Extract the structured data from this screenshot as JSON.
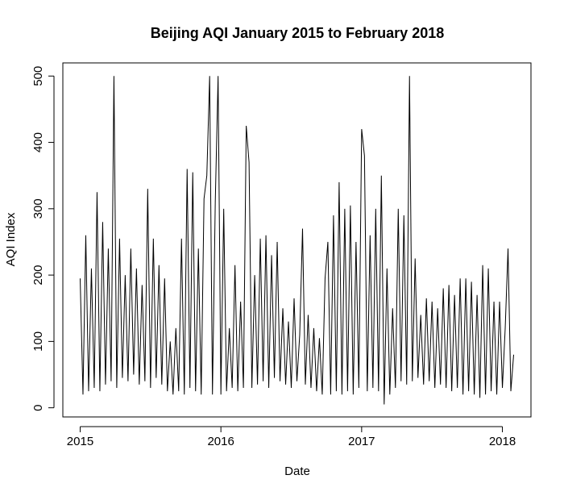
{
  "chart_data": {
    "type": "line",
    "title": "Beijing AQI January 2015 to February 2018",
    "x_label": "Date",
    "y_label": "AQI Index",
    "color": "#000000",
    "x": [
      2015.0,
      2015.02,
      2015.04,
      2015.06,
      2015.08,
      2015.1,
      2015.12,
      2015.14,
      2015.16,
      2015.18,
      2015.2,
      2015.22,
      2015.24,
      2015.26,
      2015.28,
      2015.3,
      2015.32,
      2015.34,
      2015.36,
      2015.38,
      2015.4,
      2015.42,
      2015.44,
      2015.46,
      2015.48,
      2015.5,
      2015.52,
      2015.54,
      2015.56,
      2015.58,
      2015.6,
      2015.62,
      2015.64,
      2015.66,
      2015.68,
      2015.7,
      2015.72,
      2015.74,
      2015.76,
      2015.78,
      2015.8,
      2015.82,
      2015.84,
      2015.86,
      2015.88,
      2015.9,
      2015.92,
      2015.94,
      2015.96,
      2015.98,
      2016.0,
      2016.02,
      2016.04,
      2016.06,
      2016.08,
      2016.1,
      2016.12,
      2016.14,
      2016.16,
      2016.18,
      2016.2,
      2016.22,
      2016.24,
      2016.26,
      2016.28,
      2016.3,
      2016.32,
      2016.34,
      2016.36,
      2016.38,
      2016.4,
      2016.42,
      2016.44,
      2016.46,
      2016.48,
      2016.5,
      2016.52,
      2016.54,
      2016.56,
      2016.58,
      2016.6,
      2016.62,
      2016.64,
      2016.66,
      2016.68,
      2016.7,
      2016.72,
      2016.74,
      2016.76,
      2016.78,
      2016.8,
      2016.82,
      2016.84,
      2016.86,
      2016.88,
      2016.9,
      2016.92,
      2016.94,
      2016.96,
      2016.98,
      2017.0,
      2017.02,
      2017.04,
      2017.06,
      2017.08,
      2017.1,
      2017.12,
      2017.14,
      2017.16,
      2017.18,
      2017.2,
      2017.22,
      2017.24,
      2017.26,
      2017.28,
      2017.3,
      2017.32,
      2017.34,
      2017.36,
      2017.38,
      2017.4,
      2017.42,
      2017.44,
      2017.46,
      2017.48,
      2017.5,
      2017.52,
      2017.54,
      2017.56,
      2017.58,
      2017.6,
      2017.62,
      2017.64,
      2017.66,
      2017.68,
      2017.7,
      2017.72,
      2017.74,
      2017.76,
      2017.78,
      2017.8,
      2017.82,
      2017.84,
      2017.86,
      2017.88,
      2017.9,
      2017.92,
      2017.94,
      2017.96,
      2017.98,
      2018.0,
      2018.02,
      2018.04,
      2018.06,
      2018.08
    ],
    "values": [
      195,
      20,
      260,
      25,
      210,
      30,
      325,
      25,
      280,
      35,
      240,
      40,
      500,
      30,
      255,
      45,
      200,
      40,
      240,
      50,
      210,
      35,
      185,
      40,
      330,
      30,
      255,
      45,
      215,
      35,
      195,
      25,
      100,
      20,
      120,
      25,
      255,
      20,
      360,
      30,
      355,
      25,
      240,
      20,
      315,
      350,
      500,
      20,
      310,
      500,
      20,
      300,
      25,
      120,
      30,
      215,
      25,
      160,
      30,
      425,
      370,
      30,
      200,
      35,
      255,
      40,
      260,
      30,
      230,
      45,
      250,
      40,
      150,
      35,
      130,
      30,
      165,
      40,
      110,
      270,
      35,
      140,
      30,
      120,
      25,
      105,
      20,
      195,
      250,
      20,
      290,
      25,
      340,
      20,
      300,
      25,
      305,
      20,
      250,
      30,
      420,
      380,
      25,
      260,
      30,
      300,
      25,
      350,
      5,
      210,
      20,
      150,
      30,
      300,
      40,
      290,
      35,
      500,
      40,
      225,
      45,
      140,
      35,
      165,
      40,
      160,
      30,
      150,
      35,
      180,
      30,
      185,
      25,
      170,
      30,
      195,
      20,
      195,
      25,
      190,
      20,
      170,
      15,
      215,
      20,
      210,
      25,
      160,
      20,
      160,
      30,
      120,
      240,
      25,
      80
    ],
    "xlim": [
      2014.877,
      2018.203
    ],
    "ylim": [
      -13.8,
      519.8
    ],
    "xticks": [
      2015,
      2016,
      2017,
      2018
    ],
    "yticks": [
      0,
      100,
      200,
      300,
      400,
      500
    ]
  }
}
